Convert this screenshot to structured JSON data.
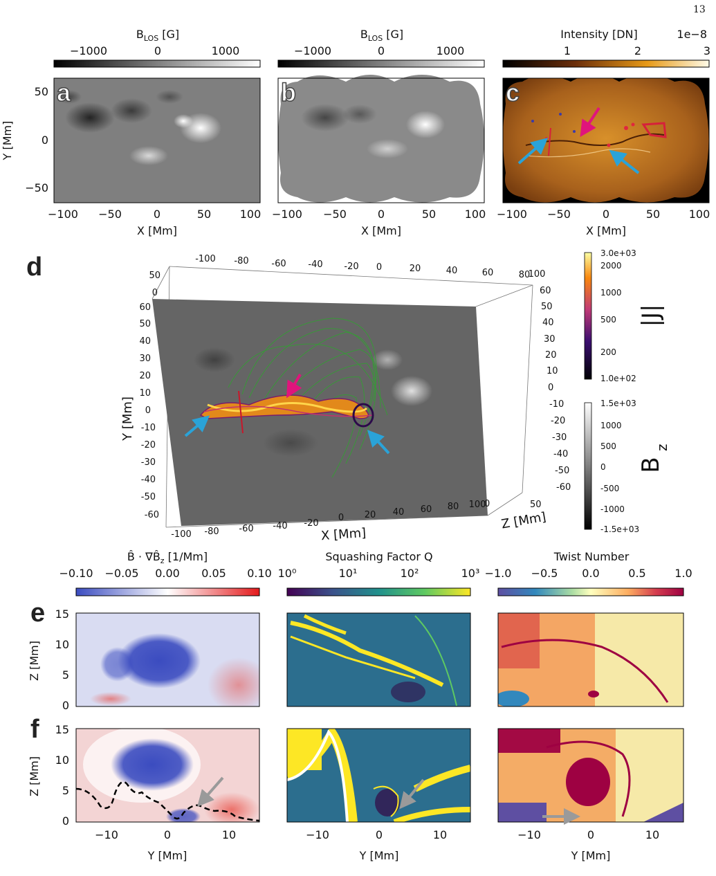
{
  "page_number": "13",
  "panel_labels": {
    "a": "a",
    "b": "b",
    "c": "c",
    "d": "d",
    "e": "e",
    "f": "f"
  },
  "top_row": {
    "colorbar_a": {
      "label": "B_LOS [G]",
      "ticks": [
        "−1000",
        "0",
        "1000"
      ]
    },
    "colorbar_b": {
      "label": "B_LOS [G]",
      "ticks": [
        "−1000",
        "0",
        "1000"
      ]
    },
    "colorbar_c": {
      "label": "Intensity [DN]",
      "ticks": [
        "1",
        "2",
        "3"
      ],
      "offset": "1e−8"
    },
    "ylabel": "Y [Mm]",
    "yticks": [
      "50",
      "0",
      "−50"
    ],
    "xlabel": "X [Mm]",
    "xticks": [
      "−100",
      "−50",
      "0",
      "50",
      "100"
    ]
  },
  "panel_d": {
    "colorbar_j": {
      "label": "|J|",
      "ticks": [
        "3.0e+03",
        "2000",
        "1000",
        "500",
        "200",
        "1.0e+02"
      ]
    },
    "colorbar_bz": {
      "label": "B",
      "label_sub": "z",
      "ticks": [
        "1.5e+03",
        "1000",
        "500",
        "0",
        "-500",
        "-1000",
        "-1.5e+03"
      ]
    },
    "top_ticks": [
      "-100",
      "-80",
      "-60",
      "-40",
      "-20",
      "0",
      "20",
      "40",
      "60",
      "80",
      "100"
    ],
    "bottom_ticks": [
      "-100",
      "-80",
      "-60",
      "-40",
      "-20",
      "0",
      "20",
      "40",
      "60",
      "80",
      "100"
    ],
    "left_ticks": [
      "60",
      "50",
      "40",
      "30",
      "20",
      "10",
      "0",
      "-10",
      "-20",
      "-30",
      "-40",
      "-50",
      "-60"
    ],
    "left_top_ticks": [
      "50",
      "0"
    ],
    "right_ticks": [
      "60",
      "50",
      "40",
      "30",
      "20",
      "10",
      "0",
      "-10",
      "-20",
      "-30",
      "-40",
      "-50",
      "-60"
    ],
    "z_ticks": [
      "0",
      "50"
    ],
    "xlabel": "X [Mm]",
    "ylabel": "Y [Mm]",
    "zlabel": "Z [Mm]"
  },
  "bottom_rows": {
    "colorbar_1": {
      "ticks": [
        "−0.10",
        "−0.05",
        "0.00",
        "0.05",
        "0.10"
      ]
    },
    "colorbar_2": {
      "label": "Squashing Factor Q",
      "ticks": [
        "10⁰",
        "10¹",
        "10²",
        "10³"
      ]
    },
    "colorbar_3": {
      "label": "Twist Number",
      "ticks": [
        "−1.0",
        "−0.5",
        "0.0",
        "0.5",
        "1.0"
      ]
    },
    "ylabel": "Z [Mm]",
    "yticks": [
      "15",
      "10",
      "5",
      "0"
    ],
    "xlabel": "Y [Mm]",
    "xticks": [
      "−10",
      "0",
      "10"
    ]
  },
  "colors": {
    "cyan_arrow": "#2aa3d8",
    "magenta_arrow": "#e0147c",
    "gray_arrow": "#9a9a9a"
  }
}
